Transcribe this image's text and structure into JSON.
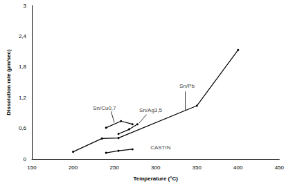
{
  "chart_data": {
    "type": "line",
    "xlabel": "Temperature (°C)",
    "ylabel": "Dissolution rate (µm/sec)",
    "xlim": [
      150,
      450
    ],
    "xticks": [
      150,
      200,
      250,
      300,
      350,
      400,
      450
    ],
    "ylim": [
      0,
      3
    ],
    "yticks": [
      0,
      {
        "value": 0.6,
        "label": "0,6"
      },
      {
        "value": 1.2,
        "label": "1,2"
      },
      {
        "value": 1.8,
        "label": "1,8"
      },
      {
        "value": 2.4,
        "label": "2,4"
      },
      3
    ],
    "grid": false,
    "series": [
      {
        "name": "Sn/Pb",
        "color": "#000000",
        "marker": "circle",
        "x": [
          200,
          235,
          255,
          350,
          400
        ],
        "values": [
          0.14,
          0.4,
          0.41,
          1.04,
          2.13
        ],
        "annotation": {
          "x": 338,
          "y": 1.42,
          "leader": [
            [
              336,
              1.32
            ],
            [
              336,
              0.95
            ]
          ]
        }
      },
      {
        "name": "Sn/Cu0,7",
        "color": "#000000",
        "marker": "circle",
        "x": [
          240,
          258,
          272
        ],
        "values": [
          0.61,
          0.74,
          0.68
        ],
        "annotation": {
          "x": 238,
          "y": 1.0,
          "leader": [
            [
              246,
              0.93
            ],
            [
              250,
              0.71
            ]
          ]
        }
      },
      {
        "name": "Sn/Ag3,5",
        "color": "#000000",
        "marker": "circle",
        "x": [
          255,
          268,
          278
        ],
        "values": [
          0.49,
          0.58,
          0.68
        ],
        "annotation": {
          "x": 294,
          "y": 0.95,
          "leader": [
            [
              289,
              0.87
            ],
            [
              280,
              0.7
            ]
          ]
        }
      },
      {
        "name": "CASTIN",
        "color": "#000000",
        "marker": "circle",
        "x": [
          240,
          255,
          272
        ],
        "values": [
          0.12,
          0.16,
          0.19
        ],
        "annotation": {
          "x": 306,
          "y": 0.22
        }
      }
    ]
  }
}
